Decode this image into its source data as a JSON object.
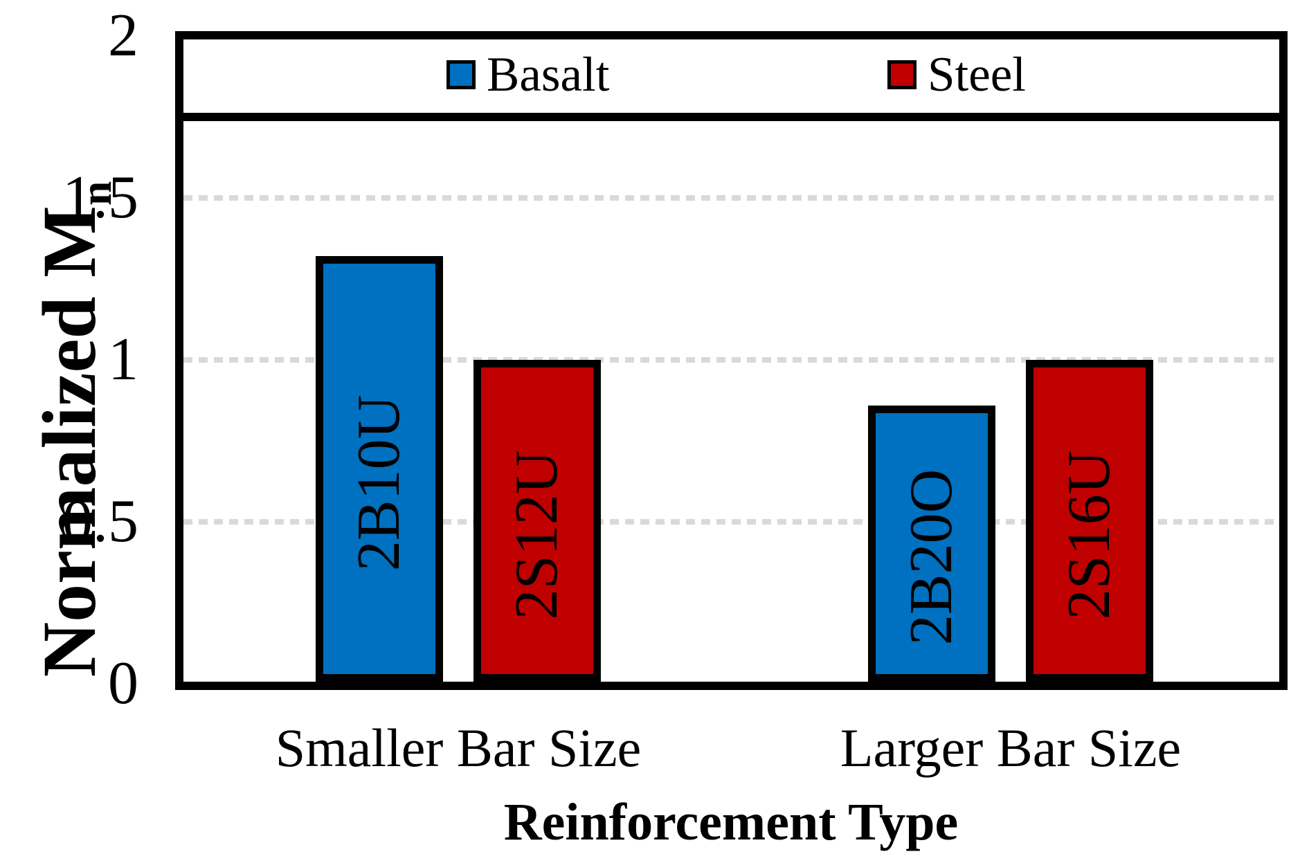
{
  "chart_data": {
    "type": "bar",
    "title": "",
    "categories": [
      "Smaller Bar Size",
      "Larger Bar Size"
    ],
    "series": [
      {
        "name": "Basalt",
        "color": "#0070C0",
        "values": [
          1.32,
          0.86
        ],
        "bar_labels": [
          "2B10U",
          "2B20O"
        ]
      },
      {
        "name": "Steel",
        "color": "#C00000",
        "values": [
          1.0,
          1.0
        ],
        "bar_labels": [
          "2S12U",
          "2S16U"
        ]
      }
    ],
    "xlabel": "Reinforcement Type",
    "ylabel": "Normalized M",
    "ylabel_subscript": "n",
    "ylim": [
      0,
      2
    ],
    "yticks": [
      0,
      0.5,
      1,
      1.5,
      2
    ],
    "ytick_labels": [
      "0",
      "0.5",
      "1",
      "1.5",
      "2"
    ],
    "grid": "horizontal-dotted",
    "gridline_color": "#D9D9D9",
    "axis_color": "#000000",
    "legend_position": "top-inside",
    "bar_label_color": "#000000"
  }
}
